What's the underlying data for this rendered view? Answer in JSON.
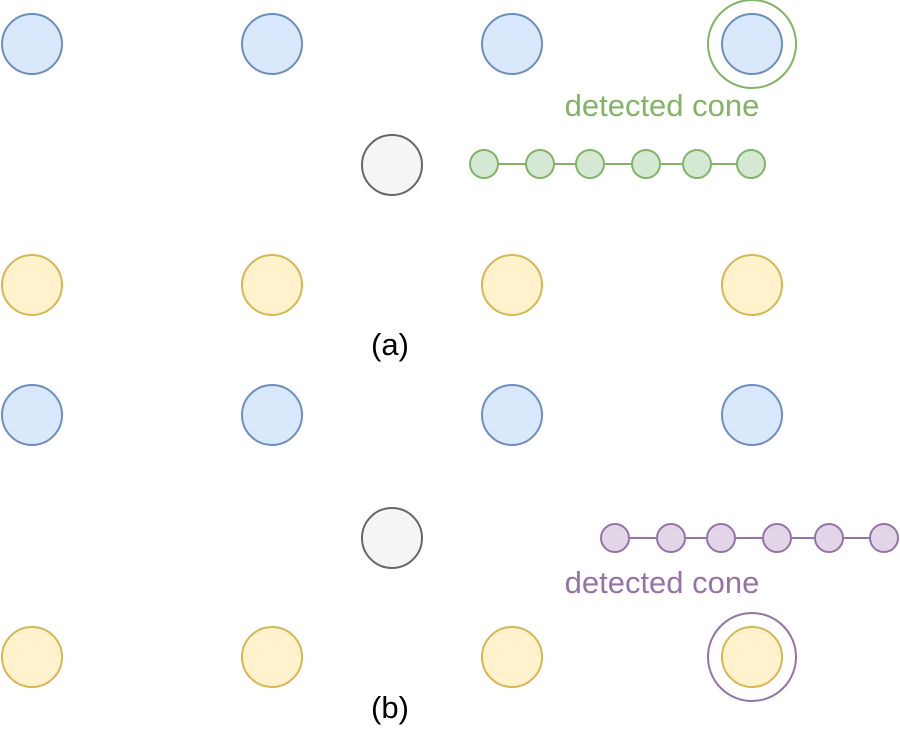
{
  "colors": {
    "blue_fill": "#dae8fc",
    "blue_stroke": "#6c8ebf",
    "yellow_fill": "#fff2cc",
    "yellow_stroke": "#d6b656",
    "gray_fill": "#f5f5f5",
    "gray_stroke": "#666666",
    "green_fill": "#d5e8d4",
    "green_stroke": "#82b366",
    "purple_fill": "#e1d5e7",
    "purple_stroke": "#9673a6"
  },
  "panels": [
    {
      "label": "(a)",
      "annotation": "detected cone",
      "annotation_color": "#82b366",
      "track_fill": "#d5e8d4",
      "highlighted_cone": "blue cone, top row, fourth from left"
    },
    {
      "label": "(b)",
      "annotation": "detected cone",
      "annotation_color": "#9673a6",
      "track_fill": "#e1d5e7",
      "highlighted_cone": "yellow cone, bottom row, fourth from left"
    }
  ]
}
